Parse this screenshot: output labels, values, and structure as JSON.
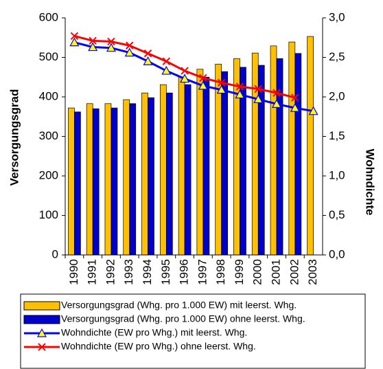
{
  "chart_data": {
    "type": "bar",
    "y_label": "Versorgungsgrad",
    "y2_label": "Wohndichte",
    "categories": [
      "1990",
      "1991",
      "1992",
      "1993",
      "1994",
      "1995",
      "1996",
      "1997",
      "1998",
      "1999",
      "2000",
      "2001",
      "2002",
      "2003"
    ],
    "series": [
      {
        "name": "Versorgungsgrad (Whg. pro 1.000 EW) mit leerst. Whg.",
        "type": "bar",
        "color": "#ffc000",
        "values": [
          372,
          383,
          383,
          393,
          410,
          431,
          450,
          470,
          483,
          497,
          511,
          529,
          539,
          553
        ]
      },
      {
        "name": "Versorgungsgrad (Whg. pro 1.000 EW) ohne leerst. Whg.",
        "type": "bar",
        "color": "#0000cc",
        "values": [
          362,
          370,
          372,
          383,
          398,
          410,
          431,
          450,
          464,
          475,
          480,
          497,
          510,
          null
        ]
      },
      {
        "name": "Wohndichte (EW pro Whg.) mit leerst. Whg.",
        "type": "line",
        "axis": "y2",
        "color": "#0000ff",
        "marker": "triangle",
        "marker_color": "#ffff00",
        "values": [
          2.69,
          2.63,
          2.62,
          2.56,
          2.45,
          2.33,
          2.23,
          2.14,
          2.09,
          2.03,
          1.97,
          1.91,
          1.86,
          1.82
        ]
      },
      {
        "name": "Wohndichte (EW pro Whg.) ohne leerst. Whg.",
        "type": "line",
        "axis": "y2",
        "color": "#ff0000",
        "marker": "x",
        "marker_color": "#ff0000",
        "values": [
          2.77,
          2.71,
          2.7,
          2.65,
          2.55,
          2.45,
          2.33,
          2.24,
          2.18,
          2.13,
          2.1,
          2.05,
          1.99,
          null
        ]
      }
    ],
    "ylim": [
      0,
      600
    ],
    "yticks": [
      0,
      100,
      200,
      300,
      400,
      500,
      600
    ],
    "y2lim": [
      0,
      3
    ],
    "y2ticks": [
      {
        "value": 0,
        "label": "0,0"
      },
      {
        "value": 0.5,
        "label": "0,5"
      },
      {
        "value": 1,
        "label": "1,0"
      },
      {
        "value": 1.5,
        "label": "1,5"
      },
      {
        "value": 2,
        "label": "2,0"
      },
      {
        "value": 2.5,
        "label": "2,5"
      },
      {
        "value": 3,
        "label": "3,0"
      }
    ],
    "grid": false,
    "legend": "bottom"
  }
}
